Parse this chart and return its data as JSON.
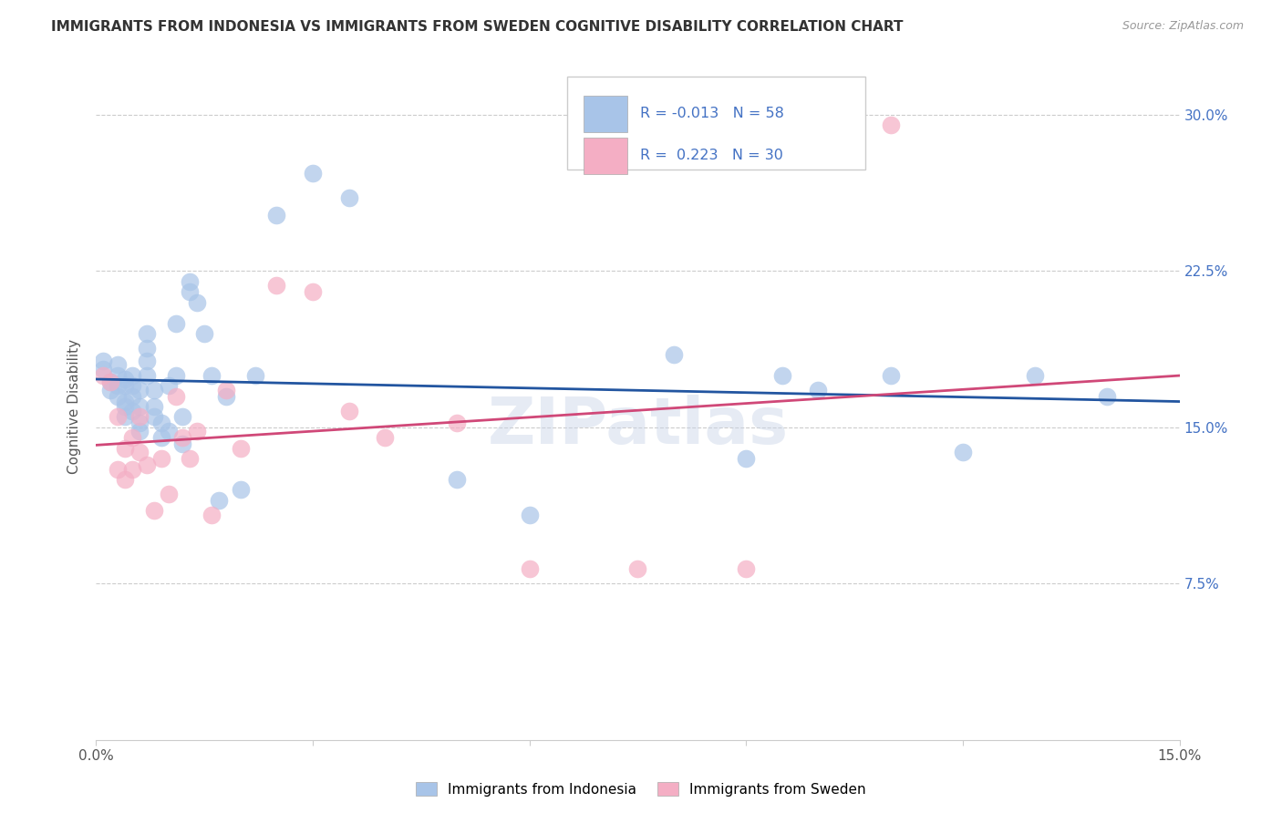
{
  "title": "IMMIGRANTS FROM INDONESIA VS IMMIGRANTS FROM SWEDEN COGNITIVE DISABILITY CORRELATION CHART",
  "source": "Source: ZipAtlas.com",
  "ylabel": "Cognitive Disability",
  "xlim": [
    0.0,
    0.15
  ],
  "ylim": [
    0.0,
    0.32
  ],
  "color_indonesia": "#a8c4e8",
  "color_sweden": "#f4aec4",
  "line_color_indonesia": "#2255a0",
  "line_color_sweden": "#d04878",
  "background_color": "#ffffff",
  "watermark": "ZIPatlas",
  "legend_color": "#4472c4",
  "indonesia_x": [
    0.001,
    0.001,
    0.002,
    0.002,
    0.003,
    0.003,
    0.003,
    0.003,
    0.004,
    0.004,
    0.004,
    0.004,
    0.004,
    0.005,
    0.005,
    0.005,
    0.005,
    0.006,
    0.006,
    0.006,
    0.006,
    0.007,
    0.007,
    0.007,
    0.007,
    0.008,
    0.008,
    0.008,
    0.009,
    0.009,
    0.01,
    0.01,
    0.011,
    0.011,
    0.012,
    0.012,
    0.013,
    0.013,
    0.014,
    0.015,
    0.016,
    0.017,
    0.018,
    0.02,
    0.022,
    0.025,
    0.03,
    0.035,
    0.05,
    0.06,
    0.08,
    0.09,
    0.095,
    0.1,
    0.11,
    0.12,
    0.13,
    0.14
  ],
  "indonesia_y": [
    0.178,
    0.182,
    0.172,
    0.168,
    0.17,
    0.165,
    0.175,
    0.18,
    0.162,
    0.17,
    0.173,
    0.16,
    0.155,
    0.158,
    0.165,
    0.17,
    0.175,
    0.152,
    0.16,
    0.148,
    0.168,
    0.182,
    0.188,
    0.175,
    0.195,
    0.16,
    0.168,
    0.155,
    0.145,
    0.152,
    0.17,
    0.148,
    0.2,
    0.175,
    0.155,
    0.142,
    0.215,
    0.22,
    0.21,
    0.195,
    0.175,
    0.115,
    0.165,
    0.12,
    0.175,
    0.252,
    0.272,
    0.26,
    0.125,
    0.108,
    0.185,
    0.135,
    0.175,
    0.168,
    0.175,
    0.138,
    0.175,
    0.165
  ],
  "sweden_x": [
    0.001,
    0.002,
    0.003,
    0.003,
    0.004,
    0.004,
    0.005,
    0.005,
    0.006,
    0.006,
    0.007,
    0.008,
    0.009,
    0.01,
    0.011,
    0.012,
    0.013,
    0.014,
    0.016,
    0.018,
    0.02,
    0.025,
    0.03,
    0.035,
    0.04,
    0.05,
    0.06,
    0.075,
    0.09,
    0.11
  ],
  "sweden_y": [
    0.175,
    0.172,
    0.13,
    0.155,
    0.125,
    0.14,
    0.145,
    0.13,
    0.138,
    0.155,
    0.132,
    0.11,
    0.135,
    0.118,
    0.165,
    0.145,
    0.135,
    0.148,
    0.108,
    0.168,
    0.14,
    0.218,
    0.215,
    0.158,
    0.145,
    0.152,
    0.082,
    0.082,
    0.082,
    0.295
  ]
}
